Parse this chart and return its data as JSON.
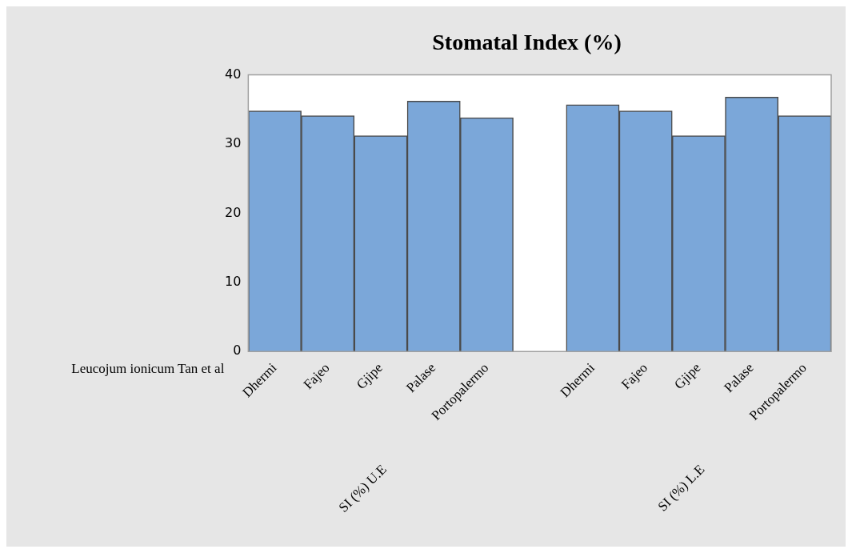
{
  "chart_data": {
    "type": "bar",
    "title": "Stomatal Index (%)",
    "categories": [
      "Dhermi",
      "Fajeo",
      "Gjipe",
      "Palase",
      "Portopalermo",
      null,
      "Dhermi",
      "Fajeo",
      "Gjipe",
      "Palase",
      "Portopalermo"
    ],
    "series": [
      {
        "color": "#7ba7d9",
        "values": [
          34.8,
          34.1,
          31.2,
          36.2,
          33.8,
          null,
          35.7,
          34.8,
          31.2,
          36.8,
          34.1
        ]
      }
    ],
    "ylim": [
      0,
      40
    ],
    "yticks": [
      0,
      10,
      20,
      30,
      40
    ],
    "grid": false,
    "legend": false,
    "annotations": [
      "SI (%) U.E",
      "SI (%) L.E",
      "Leucojum ionicum Tan et al"
    ]
  }
}
